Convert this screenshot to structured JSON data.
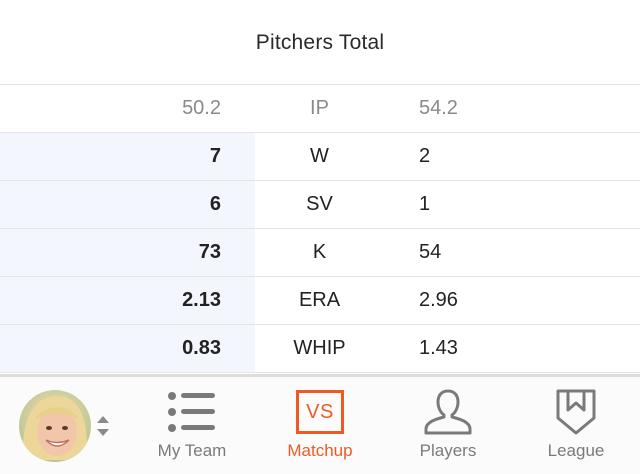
{
  "header": {
    "title": "Pitchers Total"
  },
  "stats": {
    "head": {
      "left": "50.2",
      "stat": "IP",
      "right": "54.2"
    },
    "rows": [
      {
        "left": "7",
        "stat": "W",
        "right": "2"
      },
      {
        "left": "6",
        "stat": "SV",
        "right": "1"
      },
      {
        "left": "73",
        "stat": "K",
        "right": "54"
      },
      {
        "left": "2.13",
        "stat": "ERA",
        "right": "2.96"
      },
      {
        "left": "0.83",
        "stat": "WHIP",
        "right": "1.43"
      }
    ]
  },
  "tabbar": {
    "tabs": [
      {
        "label": "My Team",
        "icon": "list-icon"
      },
      {
        "label": "Matchup",
        "icon_text": "VS",
        "icon": "vs-icon",
        "active": true
      },
      {
        "label": "Players",
        "icon": "player-icon"
      },
      {
        "label": "League",
        "icon": "league-shield-icon"
      }
    ]
  },
  "colors": {
    "accent": "#ef5a24",
    "highlight_column": "#f3f6fc"
  }
}
